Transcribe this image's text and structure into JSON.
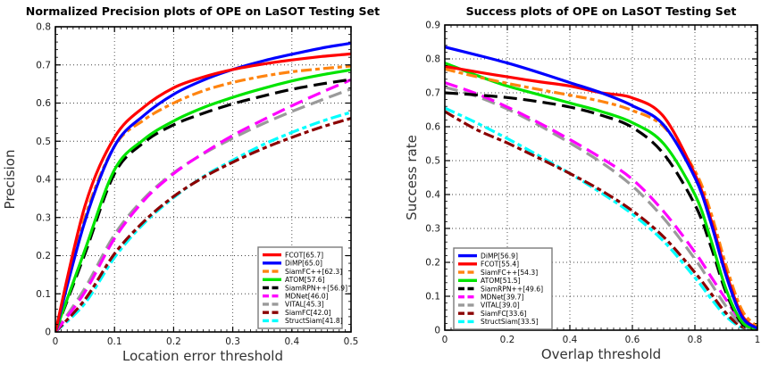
{
  "figure": {
    "background": "#ffffff"
  },
  "chart_data": [
    {
      "type": "line",
      "title": "Normalized Precision plots of OPE on LaSOT Testing Set",
      "xlabel": "Location error threshold",
      "ylabel": "Precision",
      "xlim": [
        0,
        0.5
      ],
      "ylim": [
        0,
        0.8
      ],
      "xticks": [
        0,
        0.1,
        0.2,
        0.3,
        0.4,
        0.5
      ],
      "yticks": [
        0,
        0.1,
        0.2,
        0.3,
        0.4,
        0.5,
        0.6,
        0.7,
        0.8
      ],
      "minor_x": 0.01,
      "minor_y": 0.02,
      "grid": "dotted",
      "legend_position": "lower right",
      "x": [
        0,
        0.05,
        0.1,
        0.15,
        0.2,
        0.25,
        0.3,
        0.35,
        0.4,
        0.45,
        0.5
      ],
      "series": [
        {
          "name": "FCOT",
          "score": 65.7,
          "label": "FCOT[65.7]",
          "color": "#ff0000",
          "style": "solid",
          "values": [
            0,
            0.33,
            0.51,
            0.59,
            0.64,
            0.668,
            0.688,
            0.702,
            0.713,
            0.722,
            0.729
          ]
        },
        {
          "name": "DiMP",
          "score": 65.0,
          "label": "DiMP[65.0]",
          "color": "#0000ff",
          "style": "solid",
          "values": [
            0,
            0.29,
            0.487,
            0.568,
            0.623,
            0.66,
            0.688,
            0.71,
            0.728,
            0.744,
            0.757
          ]
        },
        {
          "name": "SiamFC++",
          "score": 62.3,
          "label": "SiamFC++[62.3]",
          "color": "#ff8410",
          "style": "dashdot",
          "values": [
            0,
            0.3,
            0.487,
            0.556,
            0.6,
            0.632,
            0.654,
            0.67,
            0.682,
            0.69,
            0.697
          ]
        },
        {
          "name": "ATOM",
          "score": 57.6,
          "label": "ATOM[57.6]",
          "color": "#00e400",
          "style": "solid",
          "values": [
            0,
            0.215,
            0.425,
            0.505,
            0.553,
            0.588,
            0.615,
            0.638,
            0.658,
            0.674,
            0.687
          ]
        },
        {
          "name": "SiamRPN++",
          "score": 56.9,
          "label": "SiamRPN++[56.9]",
          "color": "#000000",
          "style": "dashed",
          "values": [
            0,
            0.205,
            0.415,
            0.497,
            0.543,
            0.573,
            0.598,
            0.618,
            0.636,
            0.65,
            0.662
          ]
        },
        {
          "name": "MDNet",
          "score": 46.0,
          "label": "MDNet[46.0]",
          "color": "#ff00ff",
          "style": "dashed",
          "values": [
            0,
            0.105,
            0.245,
            0.345,
            0.415,
            0.468,
            0.515,
            0.555,
            0.593,
            0.628,
            0.661
          ]
        },
        {
          "name": "VITAL",
          "score": 45.3,
          "label": "VITAL[45.3]",
          "color": "#9a9a9a",
          "style": "dashed",
          "values": [
            0,
            0.115,
            0.255,
            0.35,
            0.417,
            0.467,
            0.508,
            0.545,
            0.578,
            0.608,
            0.637
          ]
        },
        {
          "name": "SiamFC",
          "score": 42.0,
          "label": "SiamFC[42.0]",
          "color": "#8b0000",
          "style": "dashdot",
          "values": [
            0,
            0.085,
            0.205,
            0.29,
            0.355,
            0.405,
            0.445,
            0.48,
            0.51,
            0.537,
            0.56
          ]
        },
        {
          "name": "StructSiam",
          "score": 41.8,
          "label": "StructSiam[41.8]",
          "color": "#00ffff",
          "style": "dashdot",
          "values": [
            0,
            0.075,
            0.195,
            0.285,
            0.352,
            0.407,
            0.45,
            0.49,
            0.523,
            0.552,
            0.576
          ]
        }
      ]
    },
    {
      "type": "line",
      "title": "Success plots of OPE on LaSOT Testing Set",
      "xlabel": "Overlap threshold",
      "ylabel": "Success rate",
      "xlim": [
        0,
        1
      ],
      "ylim": [
        0,
        0.9
      ],
      "xticks": [
        0,
        0.2,
        0.4,
        0.6,
        0.8,
        1
      ],
      "yticks": [
        0,
        0.1,
        0.2,
        0.3,
        0.4,
        0.5,
        0.6,
        0.7,
        0.8,
        0.9
      ],
      "minor_x": 0.02,
      "minor_y": 0.02,
      "grid": "dotted",
      "legend_position": "lower left",
      "x": [
        0,
        0.1,
        0.2,
        0.3,
        0.4,
        0.5,
        0.6,
        0.7,
        0.8,
        0.85,
        0.9,
        0.95,
        1
      ],
      "series": [
        {
          "name": "DiMP",
          "score": 56.9,
          "label": "DiMP[56.9]",
          "color": "#0000ff",
          "style": "solid",
          "values": [
            0.835,
            0.812,
            0.788,
            0.76,
            0.73,
            0.7,
            0.662,
            0.605,
            0.45,
            0.32,
            0.16,
            0.04,
            0.005
          ]
        },
        {
          "name": "FCOT",
          "score": 55.4,
          "label": "FCOT[55.4]",
          "color": "#ff0000",
          "style": "solid",
          "values": [
            0.778,
            0.762,
            0.747,
            0.733,
            0.72,
            0.7,
            0.685,
            0.63,
            0.46,
            0.33,
            0.17,
            0.045,
            0.005
          ]
        },
        {
          "name": "SiamFC++",
          "score": 54.3,
          "label": "SiamFC++[54.3]",
          "color": "#ff8410",
          "style": "dashdot",
          "values": [
            0.77,
            0.748,
            0.728,
            0.71,
            0.693,
            0.675,
            0.648,
            0.6,
            0.47,
            0.35,
            0.19,
            0.06,
            0.01
          ]
        },
        {
          "name": "ATOM",
          "score": 51.5,
          "label": "ATOM[51.5]",
          "color": "#00e400",
          "style": "solid",
          "values": [
            0.788,
            0.752,
            0.72,
            0.695,
            0.67,
            0.645,
            0.612,
            0.55,
            0.4,
            0.27,
            0.12,
            0.025,
            0.003
          ]
        },
        {
          "name": "SiamRPN++",
          "score": 49.6,
          "label": "SiamRPN++[49.6]",
          "color": "#000000",
          "style": "dashed",
          "values": [
            0.7,
            0.694,
            0.686,
            0.674,
            0.658,
            0.634,
            0.598,
            0.52,
            0.37,
            0.25,
            0.11,
            0.02,
            0.002
          ]
        },
        {
          "name": "MDNet",
          "score": 39.7,
          "label": "MDNet[39.7]",
          "color": "#ff00ff",
          "style": "dashed",
          "values": [
            0.73,
            0.698,
            0.658,
            0.612,
            0.562,
            0.508,
            0.445,
            0.35,
            0.23,
            0.16,
            0.09,
            0.025,
            0.003
          ]
        },
        {
          "name": "VITAL",
          "score": 39.0,
          "label": "VITAL[39.0]",
          "color": "#9a9a9a",
          "style": "dashed",
          "values": [
            0.717,
            0.69,
            0.652,
            0.605,
            0.552,
            0.495,
            0.425,
            0.33,
            0.21,
            0.14,
            0.07,
            0.015,
            0.002
          ]
        },
        {
          "name": "SiamFC",
          "score": 33.6,
          "label": "SiamFC[33.6]",
          "color": "#8b0000",
          "style": "dashdot",
          "values": [
            0.645,
            0.592,
            0.552,
            0.508,
            0.462,
            0.412,
            0.352,
            0.275,
            0.17,
            0.11,
            0.05,
            0.01,
            0.001
          ]
        },
        {
          "name": "StructSiam",
          "score": 33.5,
          "label": "StructSiam[33.5]",
          "color": "#00ffff",
          "style": "dashdot",
          "values": [
            0.655,
            0.612,
            0.565,
            0.515,
            0.462,
            0.405,
            0.342,
            0.262,
            0.155,
            0.095,
            0.04,
            0.008,
            0.001
          ]
        }
      ]
    }
  ]
}
